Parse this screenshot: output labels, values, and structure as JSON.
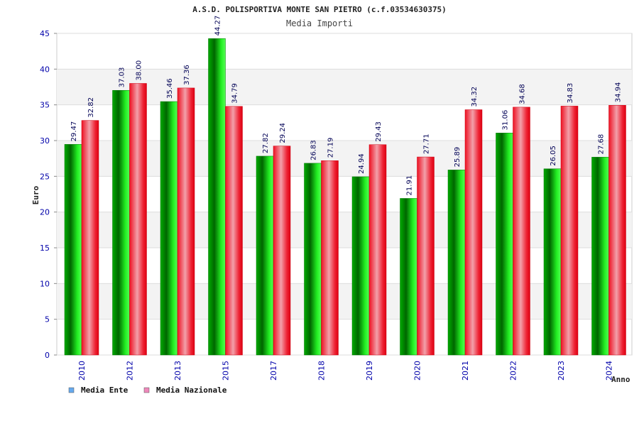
{
  "chart_data": {
    "type": "bar",
    "title": "A.S.D. POLISPORTIVA MONTE SAN PIETRO (c.f.03534630375)",
    "subtitle": "Media Importi",
    "xlabel": "Anno",
    "ylabel": "Euro",
    "ylim": [
      0,
      45
    ],
    "yticks": [
      0,
      5,
      10,
      15,
      20,
      25,
      30,
      35,
      40,
      45
    ],
    "categories": [
      "2010",
      "2012",
      "2013",
      "2015",
      "2017",
      "2018",
      "2019",
      "2020",
      "2021",
      "2022",
      "2023",
      "2024"
    ],
    "series": [
      {
        "name": "Media Ente",
        "legend_color": "#66aaee",
        "values": [
          29.47,
          37.03,
          35.46,
          44.27,
          27.82,
          26.83,
          24.94,
          21.91,
          25.89,
          31.06,
          26.05,
          27.68
        ],
        "labels": [
          "29.47",
          "37.03",
          "35.46",
          "44.27",
          "27.82",
          "26.83",
          "24.94",
          "21.91",
          "25.89",
          "31.06",
          "26.05",
          "27.68"
        ]
      },
      {
        "name": "Media Nazionale",
        "legend_color": "#ee88bb",
        "values": [
          32.82,
          38.0,
          37.36,
          34.79,
          29.24,
          27.19,
          29.43,
          27.71,
          34.32,
          34.68,
          34.83,
          34.94
        ],
        "labels": [
          "32.82",
          "38.00",
          "37.36",
          "34.79",
          "29.24",
          "27.19",
          "29.43",
          "27.71",
          "34.32",
          "34.68",
          "34.83",
          "34.94"
        ]
      }
    ],
    "grid": true,
    "legend": "bottom-left"
  }
}
